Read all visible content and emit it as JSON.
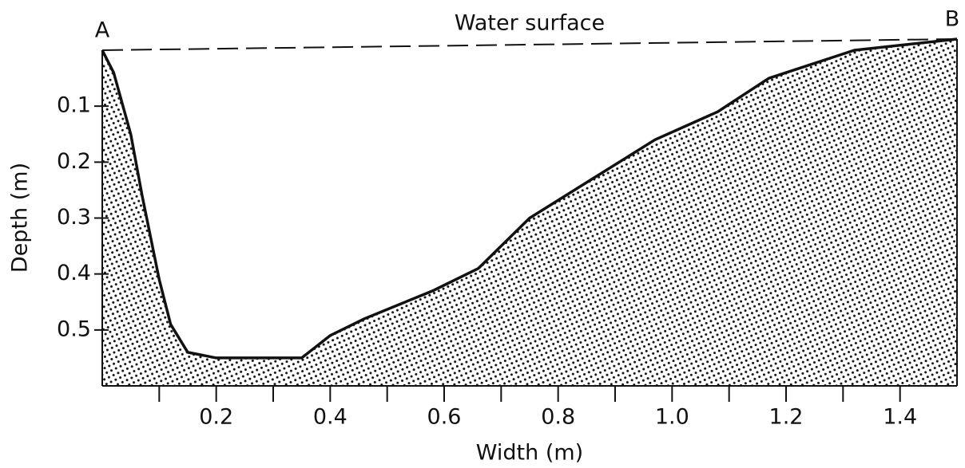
{
  "chart_data": {
    "type": "area",
    "x_label": "Width (m)",
    "y_label": "Depth (m)",
    "x": [
      0,
      0.02,
      0.05,
      0.07,
      0.1,
      0.12,
      0.15,
      0.2,
      0.3,
      0.35,
      0.4,
      0.46,
      0.58,
      0.66,
      0.75,
      0.86,
      0.97,
      1.08,
      1.17,
      1.32,
      1.5
    ],
    "values": [
      0,
      0.04,
      0.15,
      0.26,
      0.41,
      0.49,
      0.54,
      0.55,
      0.55,
      0.55,
      0.51,
      0.48,
      0.43,
      0.39,
      0.3,
      0.23,
      0.16,
      0.11,
      0.05,
      0,
      -0.02
    ],
    "color": "#111111",
    "xlim": [
      0,
      1.5
    ],
    "ylim": [
      0,
      0.6
    ],
    "y_inverted": true,
    "xticks": [
      0.2,
      0.4,
      0.6,
      0.8,
      {
        "value": 1,
        "label": "1.0"
      },
      1.2,
      1.4
    ],
    "xminor": [
      0.1,
      0.3,
      0.5,
      0.7,
      0.9,
      1.1,
      1.3
    ],
    "yticks": [
      0.1,
      0.2,
      0.3,
      0.4,
      0.5
    ],
    "water_surface": {
      "label": "Water surface",
      "x": [
        0,
        1.5
      ],
      "y": [
        0,
        -0.02
      ]
    },
    "points": [
      {
        "label": "A",
        "x": 0,
        "y": 0
      },
      {
        "label": "B",
        "x": 1.5,
        "y": -0.02
      }
    ]
  }
}
